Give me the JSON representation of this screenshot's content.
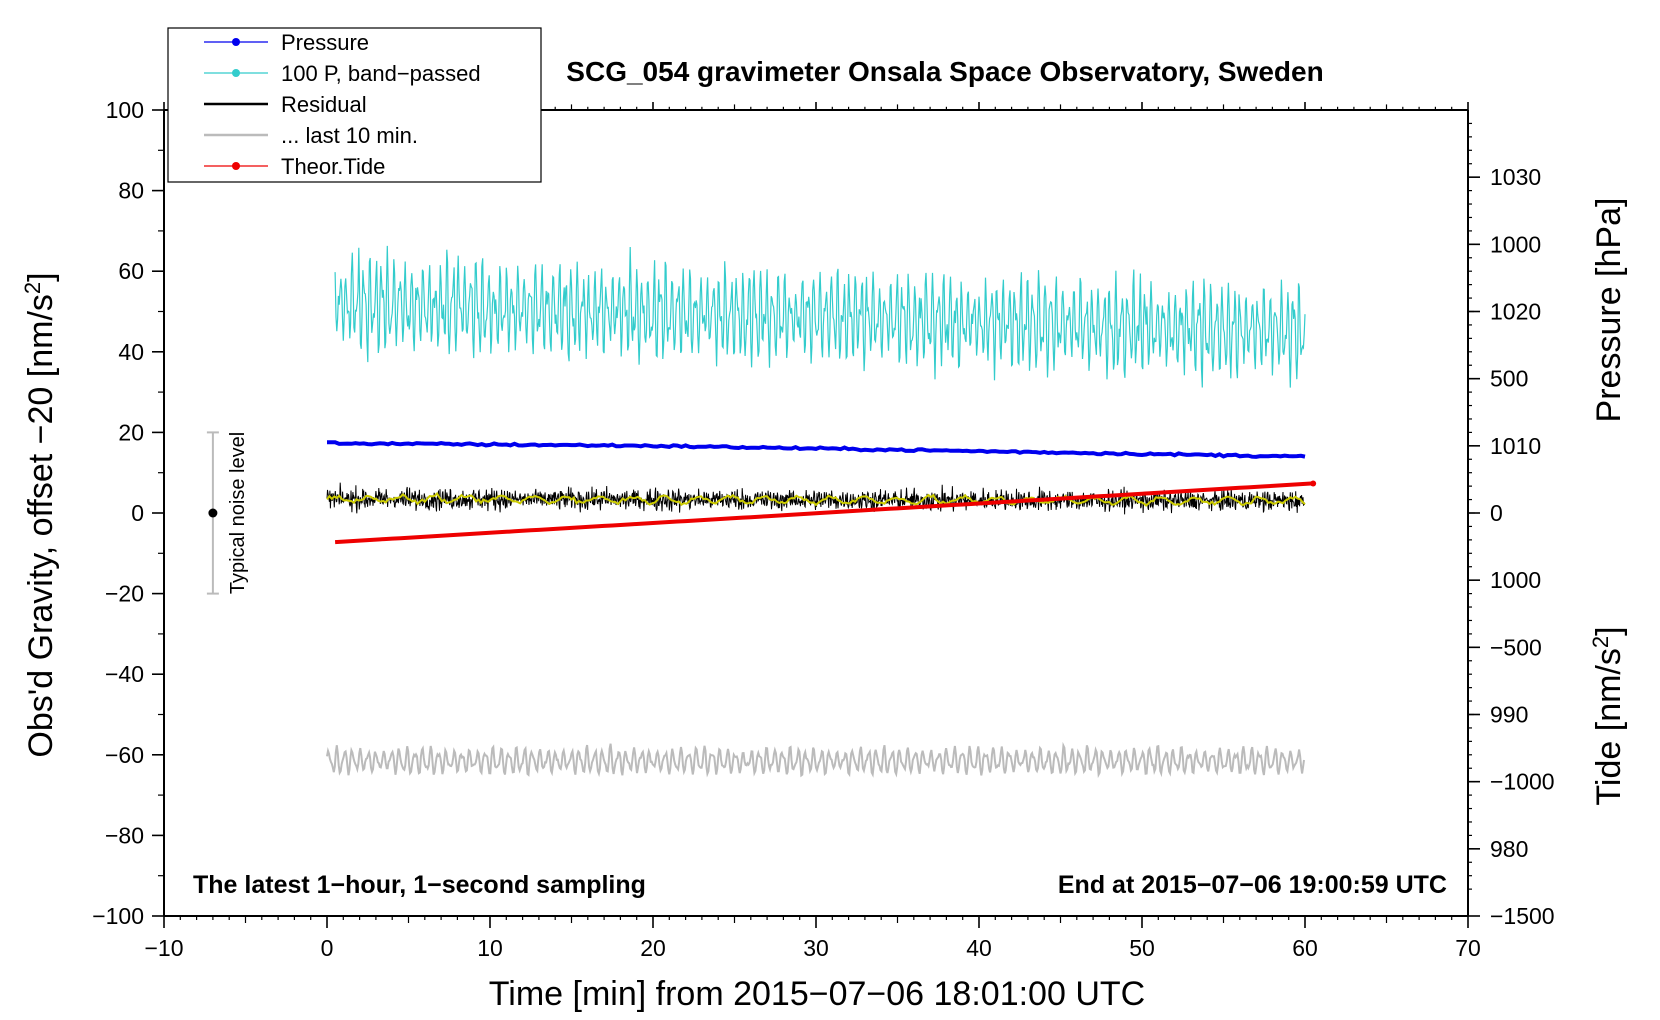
{
  "chart_data": {
    "type": "line",
    "title": "SCG_054 gravimeter Onsala Space Observatory, Sweden",
    "xlabel": "Time [min] from 2015−07−06 18:01:00 UTC",
    "ylabel_left": "Obs'd Gravity, offset −20 [nm/s",
    "ylabel_left_sup": "2",
    "ylabel_left_end": "]",
    "ylabel_right_top": "Pressure [hPa]",
    "ylabel_right_bottom": "Tide [nm/s",
    "ylabel_right_bottom_sup": "2",
    "ylabel_right_bottom_end": "]",
    "xlim": [
      -10,
      70
    ],
    "ylim_left": [
      -100,
      100
    ],
    "ylim_pressure": [
      975,
      1035
    ],
    "ylim_tide": [
      -1500,
      1500
    ],
    "x_ticks": [
      {
        "v": -10,
        "label": "−10"
      },
      {
        "v": 0,
        "label": "0"
      },
      {
        "v": 10,
        "label": "10"
      },
      {
        "v": 20,
        "label": "20"
      },
      {
        "v": 30,
        "label": "30"
      },
      {
        "v": 40,
        "label": "40"
      },
      {
        "v": 50,
        "label": "50"
      },
      {
        "v": 60,
        "label": "60"
      },
      {
        "v": 70,
        "label": "70"
      }
    ],
    "y_left_ticks": [
      {
        "v": 100,
        "label": "100"
      },
      {
        "v": 80,
        "label": "80"
      },
      {
        "v": 60,
        "label": "60"
      },
      {
        "v": 40,
        "label": "40"
      },
      {
        "v": 20,
        "label": "20"
      },
      {
        "v": 0,
        "label": "0"
      },
      {
        "v": -20,
        "label": "−20"
      },
      {
        "v": -40,
        "label": "−40"
      },
      {
        "v": -60,
        "label": "−60"
      },
      {
        "v": -80,
        "label": "−80"
      },
      {
        "v": -100,
        "label": "−100"
      }
    ],
    "y_pressure_ticks": [
      {
        "v": 1030,
        "label": "1030"
      },
      {
        "v": 1020,
        "label": "1020"
      },
      {
        "v": 1010,
        "label": "1010"
      },
      {
        "v": 1000,
        "label": "1000"
      },
      {
        "v": 990,
        "label": "990"
      },
      {
        "v": 980,
        "label": "980"
      }
    ],
    "y_tide_ticks": [
      {
        "v": 1000,
        "label": "1000"
      },
      {
        "v": 500,
        "label": "500"
      },
      {
        "v": 0,
        "label": "0"
      },
      {
        "v": -500,
        "label": "−500"
      },
      {
        "v": -1000,
        "label": "−1000"
      },
      {
        "v": -1500,
        "label": "−1500"
      }
    ],
    "series": [
      {
        "name": "Pressure",
        "color": "#0000ee",
        "axis": "pressure",
        "x": [
          0,
          10,
          20,
          30,
          40,
          50,
          60
        ],
        "values": [
          1010.2,
          1010.1,
          1010.0,
          1009.8,
          1009.6,
          1009.4,
          1009.2
        ]
      },
      {
        "name": "100 P, band−passed",
        "color": "#33cccc",
        "axis": "left",
        "x": [
          0,
          60
        ],
        "values": [
          52,
          45
        ],
        "amplitude": 10
      },
      {
        "name": "Residual",
        "color": "#000000",
        "axis": "left",
        "x": [
          0,
          60
        ],
        "values": [
          3.5,
          3.0
        ],
        "amplitude": 4
      },
      {
        "name": "... last 10 min.",
        "color": "#bbbbbb",
        "axis": "left",
        "x": [
          0,
          60
        ],
        "values": [
          -61.5,
          -61.5
        ],
        "amplitude": 3
      },
      {
        "name": "Theor.Tide",
        "color": "#ee0000",
        "axis": "tide",
        "x": [
          0,
          60.5
        ],
        "values": [
          -110,
          110
        ]
      }
    ],
    "smoothed_residual": {
      "color": "#cccc00",
      "values": [
        3.5,
        3.0
      ]
    },
    "noise_bar": {
      "x": -7,
      "center": 0,
      "low": -20,
      "high": 20,
      "label": "Typical noise level"
    },
    "annotations": {
      "bottom_left": "The latest 1−hour, 1−second sampling",
      "bottom_right": "End at 2015−07−06 19:00:59 UTC"
    },
    "legend_position": "top-left"
  }
}
